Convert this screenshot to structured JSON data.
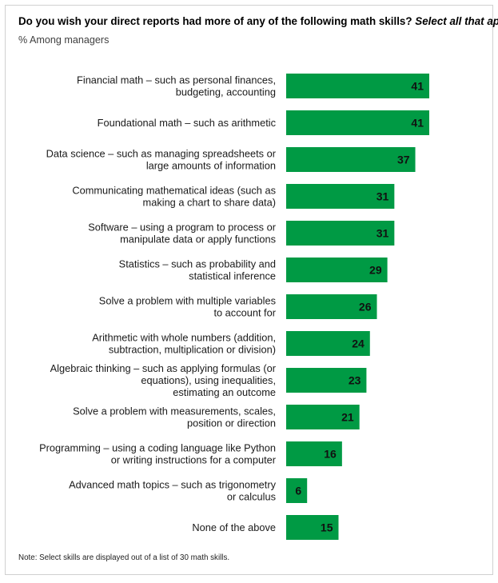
{
  "title_main": "Do you wish your direct reports had more of any of the following math skills?",
  "title_emphasis": "Select all that apply.",
  "subtitle": "% Among managers",
  "note": "Note: Select skills are displayed out of a list of 30 math skills.",
  "colors": {
    "bar": "#009a44"
  },
  "chart_data": {
    "type": "bar",
    "orientation": "horizontal",
    "xlim": [
      0,
      41
    ],
    "grid": false,
    "categories": [
      [
        "Financial math – such as personal finances,",
        "budgeting, accounting"
      ],
      [
        "Foundational math – such as arithmetic"
      ],
      [
        "Data science – such as managing spreadsheets or",
        "large amounts of information"
      ],
      [
        "Communicating mathematical ideas (such as",
        "making a chart to share data)"
      ],
      [
        "Software – using a program to process or",
        "manipulate data or apply functions"
      ],
      [
        "Statistics – such as probability and",
        "statistical inference"
      ],
      [
        "Solve a problem with multiple variables",
        "to account for"
      ],
      [
        "Arithmetic with whole numbers (addition,",
        "subtraction, multiplication or division)"
      ],
      [
        "Algebraic thinking – such as applying formulas (or",
        "equations), using inequalities,",
        "estimating an outcome"
      ],
      [
        "Solve a problem with measurements, scales,",
        "position or direction"
      ],
      [
        "Programming – using a coding language like Python",
        "or writing instructions for a computer"
      ],
      [
        "Advanced math topics – such as trigonometry",
        "or calculus"
      ],
      [
        "None of the above"
      ]
    ],
    "values": [
      41,
      41,
      37,
      31,
      31,
      29,
      26,
      24,
      23,
      21,
      16,
      6,
      15
    ]
  }
}
